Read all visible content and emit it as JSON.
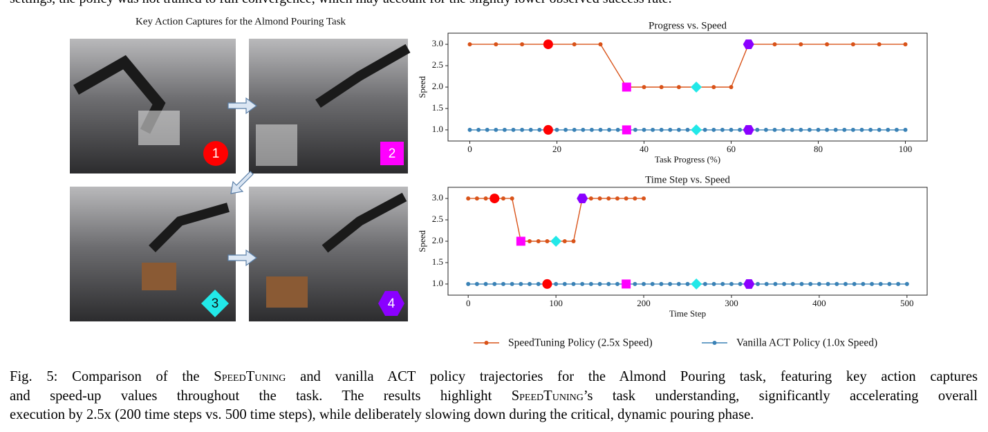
{
  "top_text": "settings, the policy was not trained to full convergence, which may account for the slightly lower observed success rate.",
  "captures": {
    "title": "Key Action Captures for the Almond Pouring Task",
    "badges": [
      "1",
      "2",
      "3",
      "4"
    ]
  },
  "chart_data": [
    {
      "type": "line",
      "title": "Progress vs. Speed",
      "xlabel": "Task Progress (%)",
      "ylabel": "Speed",
      "xlim": [
        -5,
        105
      ],
      "ylim": [
        0.74,
        3.26
      ],
      "xticks": [
        0,
        20,
        40,
        60,
        80,
        100
      ],
      "yticks": [
        {
          "value": 1,
          "label": "1.0"
        },
        {
          "value": 1.5,
          "label": "1.5"
        },
        {
          "value": 2,
          "label": "2.0"
        },
        {
          "value": 2.5,
          "label": "2.5"
        },
        {
          "value": 3,
          "label": "3.0"
        }
      ],
      "key_markers": [
        {
          "shape": "circle",
          "color": "#ff0000"
        },
        {
          "shape": "square",
          "color": "#ff00ff"
        },
        {
          "shape": "diamond",
          "color": "#22e8e8"
        },
        {
          "shape": "hexagon",
          "color": "#8a00ff"
        }
      ],
      "series": [
        {
          "name": "SpeedTuning Policy (2.5x Speed)",
          "color": "#d95319",
          "x": [
            0,
            6,
            12,
            18,
            24,
            30,
            36,
            40,
            44,
            48,
            52,
            56,
            60,
            64,
            70,
            76,
            82,
            88,
            94,
            100
          ],
          "values": [
            3,
            3,
            3,
            3,
            3,
            3,
            2,
            2,
            2,
            2,
            2,
            2,
            2,
            3,
            3,
            3,
            3,
            3,
            3,
            3
          ],
          "key_x": [
            18,
            36,
            52,
            64
          ]
        },
        {
          "name": "Vanilla ACT Policy (1.0x Speed)",
          "color": "#3a82b6",
          "x": [
            0,
            2,
            4,
            6,
            8,
            10,
            12,
            14,
            16,
            18,
            20,
            22,
            24,
            26,
            28,
            30,
            32,
            34,
            36,
            38,
            40,
            42,
            44,
            46,
            48,
            50,
            52,
            54,
            56,
            58,
            60,
            62,
            64,
            66,
            68,
            70,
            72,
            74,
            76,
            78,
            80,
            82,
            84,
            86,
            88,
            90,
            92,
            94,
            96,
            98,
            100
          ],
          "values": [
            1,
            1,
            1,
            1,
            1,
            1,
            1,
            1,
            1,
            1,
            1,
            1,
            1,
            1,
            1,
            1,
            1,
            1,
            1,
            1,
            1,
            1,
            1,
            1,
            1,
            1,
            1,
            1,
            1,
            1,
            1,
            1,
            1,
            1,
            1,
            1,
            1,
            1,
            1,
            1,
            1,
            1,
            1,
            1,
            1,
            1,
            1,
            1,
            1,
            1,
            1
          ],
          "key_x": [
            18,
            36,
            52,
            64
          ]
        }
      ]
    },
    {
      "type": "line",
      "title": "Time Step vs. Speed",
      "xlabel": "Time Step",
      "ylabel": "Speed",
      "xlim": [
        -23,
        523
      ],
      "ylim": [
        0.74,
        3.26
      ],
      "xticks": [
        0,
        100,
        200,
        300,
        400,
        500
      ],
      "yticks": [
        {
          "value": 1,
          "label": "1.0"
        },
        {
          "value": 1.5,
          "label": "1.5"
        },
        {
          "value": 2,
          "label": "2.0"
        },
        {
          "value": 2.5,
          "label": "2.5"
        },
        {
          "value": 3,
          "label": "3.0"
        }
      ],
      "key_markers": [
        {
          "shape": "circle",
          "color": "#ff0000"
        },
        {
          "shape": "square",
          "color": "#ff00ff"
        },
        {
          "shape": "diamond",
          "color": "#22e8e8"
        },
        {
          "shape": "hexagon",
          "color": "#8a00ff"
        }
      ],
      "series": [
        {
          "color": "#d95319",
          "x": [
            0,
            10,
            20,
            30,
            40,
            50,
            60,
            70,
            80,
            90,
            100,
            110,
            120,
            130,
            140,
            150,
            160,
            170,
            180,
            190,
            200
          ],
          "values": [
            3,
            3,
            3,
            3,
            3,
            3,
            2,
            2,
            2,
            2,
            2,
            2,
            2,
            3,
            3,
            3,
            3,
            3,
            3,
            3,
            3
          ],
          "key_x": [
            30,
            60,
            100,
            130
          ]
        },
        {
          "color": "#3a82b6",
          "x": [
            0,
            10,
            20,
            30,
            40,
            50,
            60,
            70,
            80,
            90,
            100,
            110,
            120,
            130,
            140,
            150,
            160,
            170,
            180,
            190,
            200,
            210,
            220,
            230,
            240,
            250,
            260,
            270,
            280,
            290,
            300,
            310,
            320,
            330,
            340,
            350,
            360,
            370,
            380,
            390,
            400,
            410,
            420,
            430,
            440,
            450,
            460,
            470,
            480,
            490,
            500
          ],
          "values": [
            1,
            1,
            1,
            1,
            1,
            1,
            1,
            1,
            1,
            1,
            1,
            1,
            1,
            1,
            1,
            1,
            1,
            1,
            1,
            1,
            1,
            1,
            1,
            1,
            1,
            1,
            1,
            1,
            1,
            1,
            1,
            1,
            1,
            1,
            1,
            1,
            1,
            1,
            1,
            1,
            1,
            1,
            1,
            1,
            1,
            1,
            1,
            1,
            1,
            1,
            1
          ],
          "key_x": [
            90,
            180,
            260,
            320
          ]
        }
      ]
    }
  ],
  "caption": [
    [
      "Fig. 5: Comparison of the ",
      "SpeedTuning",
      " and vanilla ACT policy trajectories for the Almond Pouring task, featuring key action captures"
    ],
    [
      "and speed-up values throughout the task. The results highlight ",
      "SpeedTuning",
      "’s task understanding, significantly accelerating overall"
    ],
    [
      "execution by 2.5x (200 time steps vs. 500 time steps), while deliberately slowing down during the critical, dynamic pouring phase."
    ]
  ]
}
